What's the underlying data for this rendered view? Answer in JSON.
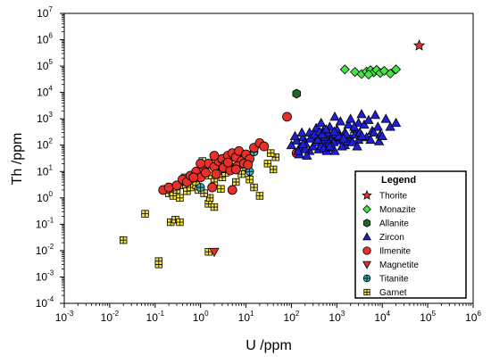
{
  "chart_data": {
    "type": "scatter",
    "title": "",
    "xlabel": "U /ppm",
    "ylabel": "Th /ppm",
    "x_scale": "log",
    "y_scale": "log",
    "xlim": [
      0.001,
      1000000
    ],
    "ylim": [
      0.0001,
      10000000
    ],
    "x_ticks": [
      {
        "base": "10",
        "exp": "-3"
      },
      {
        "base": "10",
        "exp": "-2"
      },
      {
        "base": "10",
        "exp": "-1"
      },
      {
        "base": "10",
        "exp": "0"
      },
      {
        "base": "10",
        "exp": "1"
      },
      {
        "base": "10",
        "exp": "2"
      },
      {
        "base": "10",
        "exp": "3"
      },
      {
        "base": "10",
        "exp": "4"
      },
      {
        "base": "10",
        "exp": "5"
      },
      {
        "base": "10",
        "exp": "6"
      }
    ],
    "y_ticks": [
      {
        "base": "10",
        "exp": "-4"
      },
      {
        "base": "10",
        "exp": "-3"
      },
      {
        "base": "10",
        "exp": "-2"
      },
      {
        "base": "10",
        "exp": "-1"
      },
      {
        "base": "10",
        "exp": "0"
      },
      {
        "base": "10",
        "exp": "1"
      },
      {
        "base": "10",
        "exp": "2"
      },
      {
        "base": "10",
        "exp": "3"
      },
      {
        "base": "10",
        "exp": "4"
      },
      {
        "base": "10",
        "exp": "5"
      },
      {
        "base": "10",
        "exp": "6"
      },
      {
        "base": "10",
        "exp": "7"
      }
    ],
    "grid": false,
    "legend": {
      "title": "Legend",
      "position": "bottom-right"
    },
    "series": [
      {
        "name": "Thorite",
        "marker": "star",
        "color": "#e8302a",
        "points": [
          [
            65000,
            600000
          ]
        ]
      },
      {
        "name": "Monazite",
        "marker": "diamond",
        "color": "#44e644",
        "points": [
          [
            1500,
            75000
          ],
          [
            2500,
            60000
          ],
          [
            3500,
            50000
          ],
          [
            4500,
            62000
          ],
          [
            5500,
            70000
          ],
          [
            6500,
            58000
          ],
          [
            7500,
            72000
          ],
          [
            9000,
            55000
          ],
          [
            11000,
            66000
          ],
          [
            15000,
            52000
          ],
          [
            20000,
            75000
          ],
          [
            5000,
            48000
          ]
        ]
      },
      {
        "name": "Allanite",
        "marker": "hexagon",
        "color": "#1f6b1f",
        "points": [
          [
            130,
            9000
          ]
        ]
      },
      {
        "name": "Zircon",
        "marker": "triangle-up",
        "color": "#1f1fd8",
        "points": [
          [
            100,
            100
          ],
          [
            130,
            150
          ],
          [
            150,
            80
          ],
          [
            180,
            200
          ],
          [
            200,
            120
          ],
          [
            250,
            300
          ],
          [
            300,
            180
          ],
          [
            350,
            450
          ],
          [
            400,
            220
          ],
          [
            450,
            700
          ],
          [
            500,
            350
          ],
          [
            600,
            150
          ],
          [
            700,
            500
          ],
          [
            800,
            250
          ],
          [
            900,
            1200
          ],
          [
            1000,
            400
          ],
          [
            1200,
            800
          ],
          [
            1500,
            300
          ],
          [
            1800,
            600
          ],
          [
            2000,
            1000
          ],
          [
            2500,
            400
          ],
          [
            3000,
            700
          ],
          [
            3500,
            1500
          ],
          [
            4000,
            600
          ],
          [
            5000,
            900
          ],
          [
            6000,
            350
          ],
          [
            7000,
            1400
          ],
          [
            8000,
            500
          ],
          [
            9000,
            250
          ],
          [
            12000,
            1000
          ],
          [
            15000,
            500
          ],
          [
            20000,
            700
          ],
          [
            250,
            60
          ],
          [
            300,
            90
          ],
          [
            400,
            70
          ],
          [
            500,
            120
          ],
          [
            600,
            60
          ],
          [
            700,
            110
          ],
          [
            800,
            80
          ],
          [
            1000,
            150
          ],
          [
            1200,
            200
          ],
          [
            1500,
            100
          ],
          [
            2000,
            180
          ],
          [
            2500,
            250
          ],
          [
            3000,
            160
          ],
          [
            150,
            45
          ],
          [
            200,
            70
          ],
          [
            180,
            110
          ],
          [
            220,
            40
          ],
          [
            350,
            130
          ],
          [
            450,
            95
          ],
          [
            550,
            210
          ],
          [
            650,
            300
          ],
          [
            750,
            170
          ],
          [
            850,
            130
          ],
          [
            950,
            260
          ],
          [
            1100,
            220
          ],
          [
            1300,
            90
          ],
          [
            1700,
            140
          ],
          [
            2200,
            130
          ],
          [
            2800,
            90
          ],
          [
            3200,
            300
          ],
          [
            4500,
            200
          ],
          [
            5500,
            160
          ],
          [
            6500,
            300
          ],
          [
            8500,
            140
          ],
          [
            10000,
            220
          ],
          [
            120,
            220
          ],
          [
            140,
            60
          ],
          [
            170,
            300
          ],
          [
            260,
            180
          ],
          [
            320,
            250
          ],
          [
            380,
            160
          ],
          [
            420,
            330
          ],
          [
            480,
            260
          ],
          [
            520,
            80
          ],
          [
            580,
            400
          ],
          [
            680,
            120
          ],
          [
            780,
            90
          ],
          [
            880,
            330
          ],
          [
            1600,
            260
          ],
          [
            2400,
            500
          ],
          [
            3600,
            220
          ],
          [
            1400,
            180
          ],
          [
            900,
            60
          ],
          [
            700,
            90
          ]
        ]
      },
      {
        "name": "Ilmenite",
        "marker": "circle",
        "color": "#e8302a",
        "points": [
          [
            0.15,
            2
          ],
          [
            0.2,
            2.5
          ],
          [
            0.3,
            3
          ],
          [
            0.4,
            5
          ],
          [
            0.5,
            4
          ],
          [
            0.6,
            7
          ],
          [
            0.8,
            10
          ],
          [
            1,
            6
          ],
          [
            1.2,
            12
          ],
          [
            1.5,
            20
          ],
          [
            2,
            15
          ],
          [
            2.5,
            25
          ],
          [
            3,
            30
          ],
          [
            3.5,
            18
          ],
          [
            4,
            40
          ],
          [
            5,
            50
          ],
          [
            6,
            35
          ],
          [
            7,
            60
          ],
          [
            8,
            25
          ],
          [
            10,
            45
          ],
          [
            12,
            30
          ],
          [
            15,
            80
          ],
          [
            20,
            120
          ],
          [
            25,
            90
          ],
          [
            1.8,
            2.5
          ],
          [
            5,
            2
          ],
          [
            0.7,
            6
          ],
          [
            1.3,
            9
          ],
          [
            2.2,
            8
          ],
          [
            3.2,
            14
          ],
          [
            4.5,
            11
          ],
          [
            6.5,
            16
          ],
          [
            9,
            20
          ],
          [
            11,
            18
          ],
          [
            80,
            1200
          ],
          [
            130,
            50
          ],
          [
            1,
            20
          ],
          [
            2,
            40
          ],
          [
            4,
            22
          ],
          [
            6,
            12
          ]
        ]
      },
      {
        "name": "Magnetite",
        "marker": "triangle-down",
        "color": "#e8302a",
        "points": [
          [
            2,
            0.009
          ]
        ]
      },
      {
        "name": "Titanite",
        "marker": "crossed-circle",
        "color": "#2ab7c8",
        "points": [
          [
            1,
            2.5
          ],
          [
            4,
            15
          ],
          [
            12,
            10
          ],
          [
            15,
            55
          ]
        ]
      },
      {
        "name": "Garnet",
        "marker": "crossed-square",
        "color": "#f0e040",
        "points": [
          [
            0.02,
            0.025
          ],
          [
            0.06,
            0.25
          ],
          [
            0.12,
            0.003
          ],
          [
            0.12,
            0.004
          ],
          [
            0.22,
            0.12
          ],
          [
            0.28,
            0.15
          ],
          [
            0.35,
            0.12
          ],
          [
            0.2,
            1.5
          ],
          [
            0.25,
            1.2
          ],
          [
            0.3,
            2
          ],
          [
            0.35,
            1
          ],
          [
            0.4,
            3
          ],
          [
            0.5,
            1.8
          ],
          [
            0.6,
            2.5
          ],
          [
            0.7,
            5
          ],
          [
            0.8,
            3
          ],
          [
            1,
            10
          ],
          [
            1.2,
            8
          ],
          [
            1.5,
            7
          ],
          [
            1.8,
            20
          ],
          [
            2,
            4
          ],
          [
            2.5,
            12
          ],
          [
            3,
            6
          ],
          [
            1.5,
            0.6
          ],
          [
            2,
            0.45
          ],
          [
            1.6,
            1
          ],
          [
            0.9,
            2
          ],
          [
            1.5,
            0.009
          ],
          [
            5,
            20
          ],
          [
            7,
            30
          ],
          [
            10,
            15
          ],
          [
            15,
            2.5
          ],
          [
            20,
            1.2
          ],
          [
            30,
            20
          ],
          [
            40,
            12
          ],
          [
            45,
            35
          ],
          [
            35,
            50
          ],
          [
            8,
            8
          ],
          [
            12,
            5
          ],
          [
            1.2,
            1.5
          ],
          [
            0.25,
            2.5
          ],
          [
            0.45,
            6
          ],
          [
            3.5,
            9
          ],
          [
            1.1,
            25
          ],
          [
            2.8,
            2.2
          ],
          [
            6,
            4
          ]
        ]
      }
    ]
  }
}
